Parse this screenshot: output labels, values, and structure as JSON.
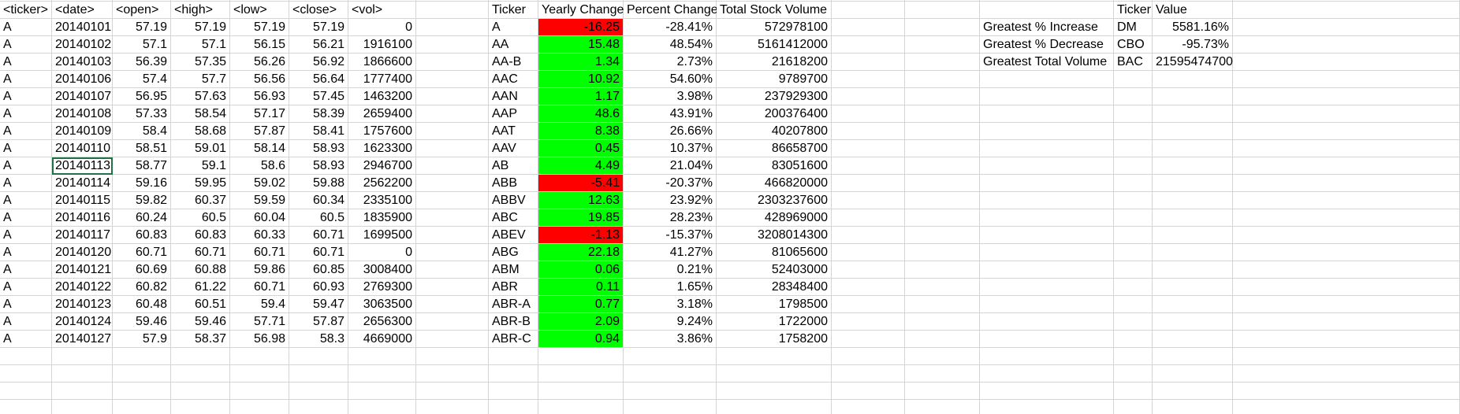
{
  "raw": {
    "headers": [
      "<ticker>",
      "<date>",
      "<open>",
      "<high>",
      "<low>",
      "<close>",
      "<vol>"
    ],
    "rows": [
      [
        "A",
        "20140101",
        "57.19",
        "57.19",
        "57.19",
        "57.19",
        "0"
      ],
      [
        "A",
        "20140102",
        "57.1",
        "57.1",
        "56.15",
        "56.21",
        "1916100"
      ],
      [
        "A",
        "20140103",
        "56.39",
        "57.35",
        "56.26",
        "56.92",
        "1866600"
      ],
      [
        "A",
        "20140106",
        "57.4",
        "57.7",
        "56.56",
        "56.64",
        "1777400"
      ],
      [
        "A",
        "20140107",
        "56.95",
        "57.63",
        "56.93",
        "57.45",
        "1463200"
      ],
      [
        "A",
        "20140108",
        "57.33",
        "58.54",
        "57.17",
        "58.39",
        "2659400"
      ],
      [
        "A",
        "20140109",
        "58.4",
        "58.68",
        "57.87",
        "58.41",
        "1757600"
      ],
      [
        "A",
        "20140110",
        "58.51",
        "59.01",
        "58.14",
        "58.93",
        "1623300"
      ],
      [
        "A",
        "20140113",
        "58.77",
        "59.1",
        "58.6",
        "58.93",
        "2946700"
      ],
      [
        "A",
        "20140114",
        "59.16",
        "59.95",
        "59.02",
        "59.88",
        "2562200"
      ],
      [
        "A",
        "20140115",
        "59.82",
        "60.37",
        "59.59",
        "60.34",
        "2335100"
      ],
      [
        "A",
        "20140116",
        "60.24",
        "60.5",
        "60.04",
        "60.5",
        "1835900"
      ],
      [
        "A",
        "20140117",
        "60.83",
        "60.83",
        "60.33",
        "60.71",
        "1699500"
      ],
      [
        "A",
        "20140120",
        "60.71",
        "60.71",
        "60.71",
        "60.71",
        "0"
      ],
      [
        "A",
        "20140121",
        "60.69",
        "60.88",
        "59.86",
        "60.85",
        "3008400"
      ],
      [
        "A",
        "20140122",
        "60.82",
        "61.22",
        "60.71",
        "60.93",
        "2769300"
      ],
      [
        "A",
        "20140123",
        "60.48",
        "60.51",
        "59.4",
        "59.47",
        "3063500"
      ],
      [
        "A",
        "20140124",
        "59.46",
        "59.46",
        "57.71",
        "57.87",
        "2656300"
      ],
      [
        "A",
        "20140127",
        "57.9",
        "58.37",
        "56.98",
        "58.3",
        "4669000"
      ]
    ]
  },
  "summary": {
    "headers": [
      "Ticker",
      "Yearly Change",
      "Percent Change",
      "Total Stock Volume"
    ],
    "rows": [
      [
        "A",
        "-16.25",
        "-28.41%",
        "572978100"
      ],
      [
        "AA",
        "15.48",
        "48.54%",
        "5161412000"
      ],
      [
        "AA-B",
        "1.34",
        "2.73%",
        "21618200"
      ],
      [
        "AAC",
        "10.92",
        "54.60%",
        "9789700"
      ],
      [
        "AAN",
        "1.17",
        "3.98%",
        "237929300"
      ],
      [
        "AAP",
        "48.6",
        "43.91%",
        "200376400"
      ],
      [
        "AAT",
        "8.38",
        "26.66%",
        "40207800"
      ],
      [
        "AAV",
        "0.45",
        "10.37%",
        "86658700"
      ],
      [
        "AB",
        "4.49",
        "21.04%",
        "83051600"
      ],
      [
        "ABB",
        "-5.41",
        "-20.37%",
        "466820000"
      ],
      [
        "ABBV",
        "12.63",
        "23.92%",
        "2303237600"
      ],
      [
        "ABC",
        "19.85",
        "28.23%",
        "428969000"
      ],
      [
        "ABEV",
        "-1.13",
        "-15.37%",
        "3208014300"
      ],
      [
        "ABG",
        "22.18",
        "41.27%",
        "81065600"
      ],
      [
        "ABM",
        "0.06",
        "0.21%",
        "52403000"
      ],
      [
        "ABR",
        "0.11",
        "1.65%",
        "28348400"
      ],
      [
        "ABR-A",
        "0.77",
        "3.18%",
        "1798500"
      ],
      [
        "ABR-B",
        "2.09",
        "9.24%",
        "1722000"
      ],
      [
        "ABR-C",
        "0.94",
        "3.86%",
        "1758200"
      ]
    ]
  },
  "greatest": {
    "headers": [
      "Ticker",
      "Value"
    ],
    "rows": [
      [
        "Greatest % Increase",
        "DM",
        "5581.16%"
      ],
      [
        "Greatest % Decrease",
        "CBO",
        "-95.73%"
      ],
      [
        "Greatest Total Volume",
        "BAC",
        "21595474700"
      ]
    ]
  },
  "colors": {
    "positive": "#00ff00",
    "negative": "#ff0000",
    "selection": "#217346",
    "gridline": "#d4d4d4"
  },
  "selected_cell": {
    "section": "raw",
    "row": 8,
    "col": 1
  }
}
